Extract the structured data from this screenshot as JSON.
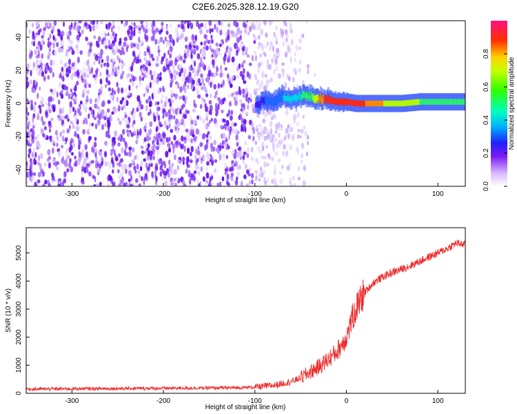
{
  "title": "C2E6.2025.328.12.19.G20",
  "chart_data": [
    {
      "type": "heatmap",
      "xlabel": "Height of straight line (km)",
      "ylabel": "Frequency (Hz)",
      "xlim": [
        -350,
        130
      ],
      "ylim": [
        -50,
        50
      ],
      "xticks": [
        -300,
        -200,
        -100,
        0,
        100
      ],
      "xtick_labels": [
        "-300",
        "-200",
        "-100",
        "0",
        "100"
      ],
      "yticks": [
        -40,
        -20,
        0,
        20,
        40
      ],
      "ytick_labels": [
        "-40",
        "-20",
        "0",
        "20",
        "40"
      ],
      "noise_region_x": [
        -350,
        -40
      ],
      "signal_track": {
        "x": [
          -100,
          -90,
          -80,
          -70,
          -60,
          -50,
          -40,
          -30,
          -20,
          -10,
          0,
          10,
          20,
          40,
          60,
          80,
          100,
          130
        ],
        "freq": [
          -1,
          2,
          1,
          4,
          2,
          5,
          4,
          3,
          2,
          1,
          1,
          0,
          0,
          0,
          0,
          1,
          1,
          1
        ],
        "amplitude": [
          0.12,
          0.2,
          0.25,
          0.3,
          0.35,
          0.4,
          0.5,
          0.85,
          0.95,
          0.9,
          0.92,
          0.95,
          0.9,
          0.8,
          0.7,
          0.6,
          0.5,
          0.45
        ]
      },
      "colorbar": {
        "label": "Normalized spectral amplitude",
        "range": [
          0,
          1
        ],
        "ticks": [
          0.0,
          0.2,
          0.4,
          0.6,
          0.8
        ],
        "tick_labels": [
          "0.0",
          "0.2",
          "0.4",
          "0.6",
          "0.8"
        ]
      }
    },
    {
      "type": "line",
      "xlabel": "Height of straight line (km)",
      "ylabel": "SNR (10 * v/v)",
      "xlim": [
        -350,
        130
      ],
      "ylim": [
        0,
        5900
      ],
      "xticks": [
        -300,
        -200,
        -100,
        0,
        100
      ],
      "xtick_labels": [
        "-300",
        "-200",
        "-100",
        "0",
        "100"
      ],
      "yticks": [
        0,
        1000,
        2000,
        3000,
        4000,
        5000
      ],
      "ytick_labels": [
        "0",
        "1000",
        "2000",
        "3000",
        "4000",
        "5000"
      ],
      "series": [
        {
          "name": "SNR",
          "color": "#ee2a2a",
          "x": [
            -350,
            -300,
            -250,
            -200,
            -150,
            -120,
            -100,
            -80,
            -60,
            -50,
            -40,
            -30,
            -20,
            -10,
            0,
            5,
            10,
            15,
            20,
            30,
            40,
            50,
            60,
            70,
            80,
            90,
            100,
            110,
            120,
            130
          ],
          "y": [
            150,
            160,
            170,
            180,
            190,
            200,
            220,
            280,
            420,
            550,
            750,
            950,
            1200,
            1500,
            2000,
            2500,
            3000,
            3300,
            3600,
            3950,
            4150,
            4300,
            4420,
            4550,
            4700,
            4850,
            5000,
            5150,
            5350,
            5300
          ]
        }
      ]
    }
  ],
  "colors": {
    "noise": "#6a1bf0",
    "signal_line": "#ee2a2a"
  }
}
